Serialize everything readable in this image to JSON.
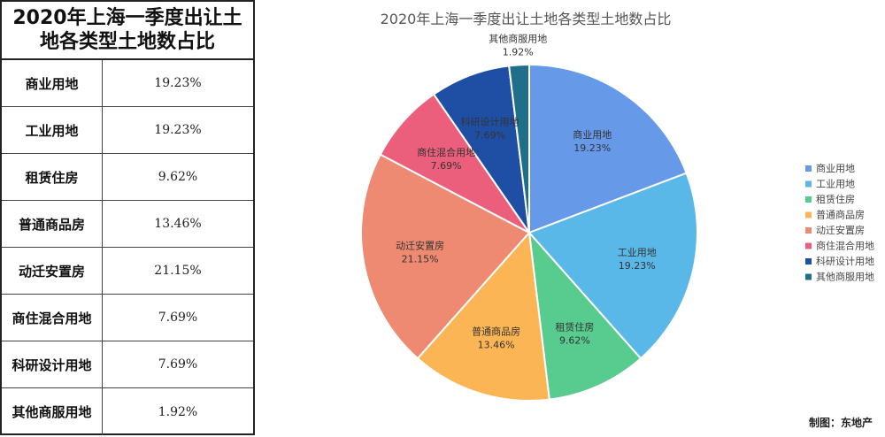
{
  "table": {
    "title_line1": "2020年上海一季度出让土",
    "title_line2": "地各类型土地数占比",
    "rows": [
      {
        "name": "商业用地",
        "value": "19.23%"
      },
      {
        "name": "工业用地",
        "value": "19.23%"
      },
      {
        "name": "租赁住房",
        "value": "9.62%"
      },
      {
        "name": "普通商品房",
        "value": "13.46%"
      },
      {
        "name": "动迁安置房",
        "value": "21.15%"
      },
      {
        "name": "商住混合用地",
        "value": "7.69%"
      },
      {
        "name": "科研设计用地",
        "value": "7.69%"
      },
      {
        "name": "其他商服用地",
        "value": "1.92%"
      }
    ]
  },
  "chart_data": {
    "type": "pie",
    "title": "2020年上海一季度出让土地各类型土地数占比",
    "legend_position": "right",
    "slices": [
      {
        "name": "商业用地",
        "value": 19.23,
        "label": "19.23%",
        "color": "#6699e8"
      },
      {
        "name": "工业用地",
        "value": 19.23,
        "label": "19.23%",
        "color": "#5ab8e8"
      },
      {
        "name": "租赁住房",
        "value": 9.62,
        "label": "9.62%",
        "color": "#57cc8e"
      },
      {
        "name": "普通商品房",
        "value": 13.46,
        "label": "13.46%",
        "color": "#fbb555"
      },
      {
        "name": "动迁安置房",
        "value": 21.15,
        "label": "21.15%",
        "color": "#ee8a72"
      },
      {
        "name": "商住混合用地",
        "value": 7.69,
        "label": "7.69%",
        "color": "#ec5f7c"
      },
      {
        "name": "科研设计用地",
        "value": 7.69,
        "label": "7.69%",
        "color": "#1f4fa5"
      },
      {
        "name": "其他商服用地",
        "value": 1.92,
        "label": "1.92%",
        "color": "#1f6f8b"
      }
    ]
  },
  "credit": "制图：东地产"
}
